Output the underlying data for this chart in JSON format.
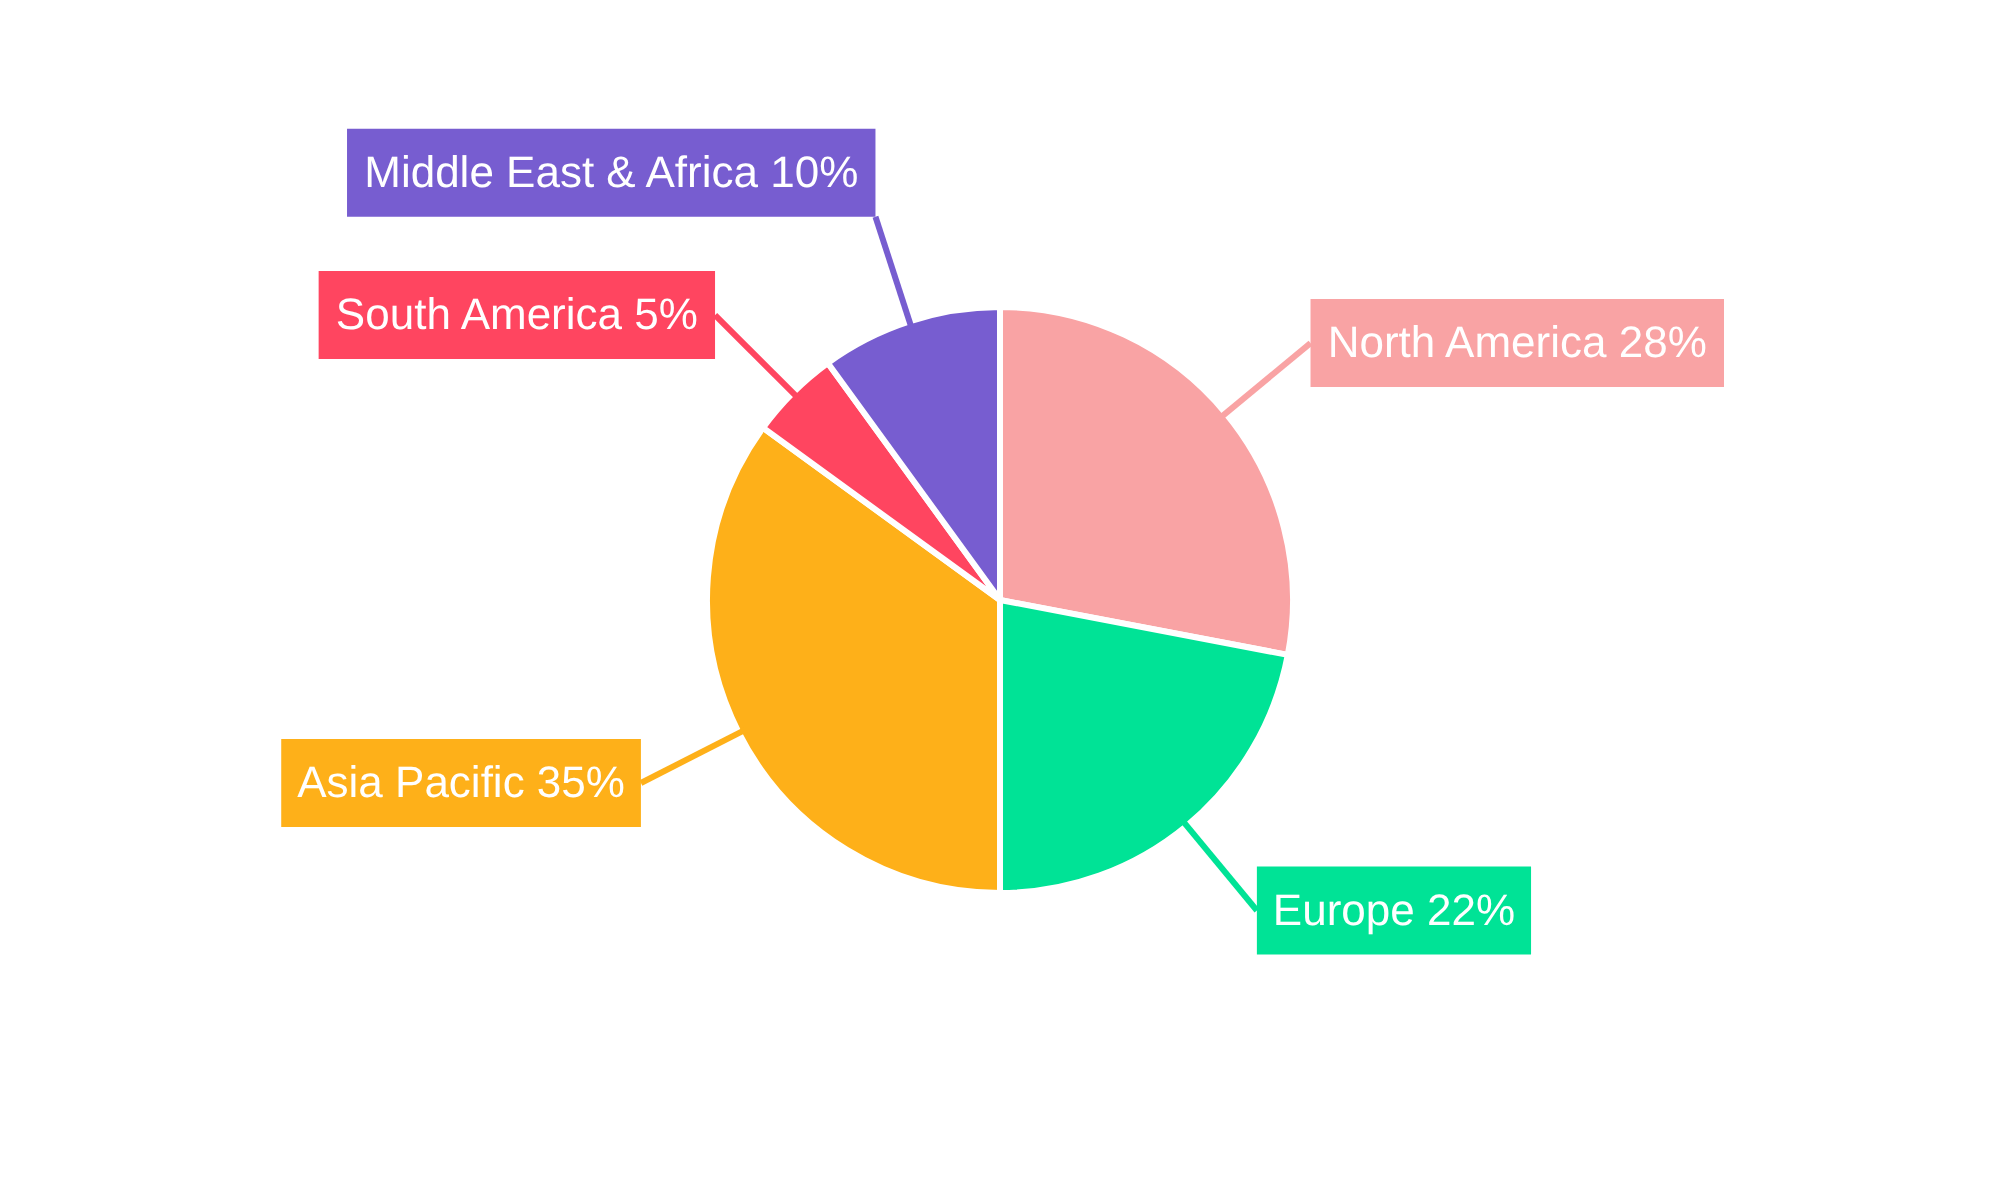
{
  "chart_data": {
    "type": "pie",
    "categories": [
      "North America",
      "Europe",
      "Asia Pacific",
      "South America",
      "Middle East & Africa"
    ],
    "values": [
      28,
      22,
      35,
      5,
      10
    ],
    "colors": [
      "#f9a3a4",
      "#00e396",
      "#feb019",
      "#ff4560",
      "#775dd0"
    ],
    "value_labels": [
      "28%",
      "22%",
      "35%",
      "5%",
      "10%"
    ],
    "legend": false
  }
}
